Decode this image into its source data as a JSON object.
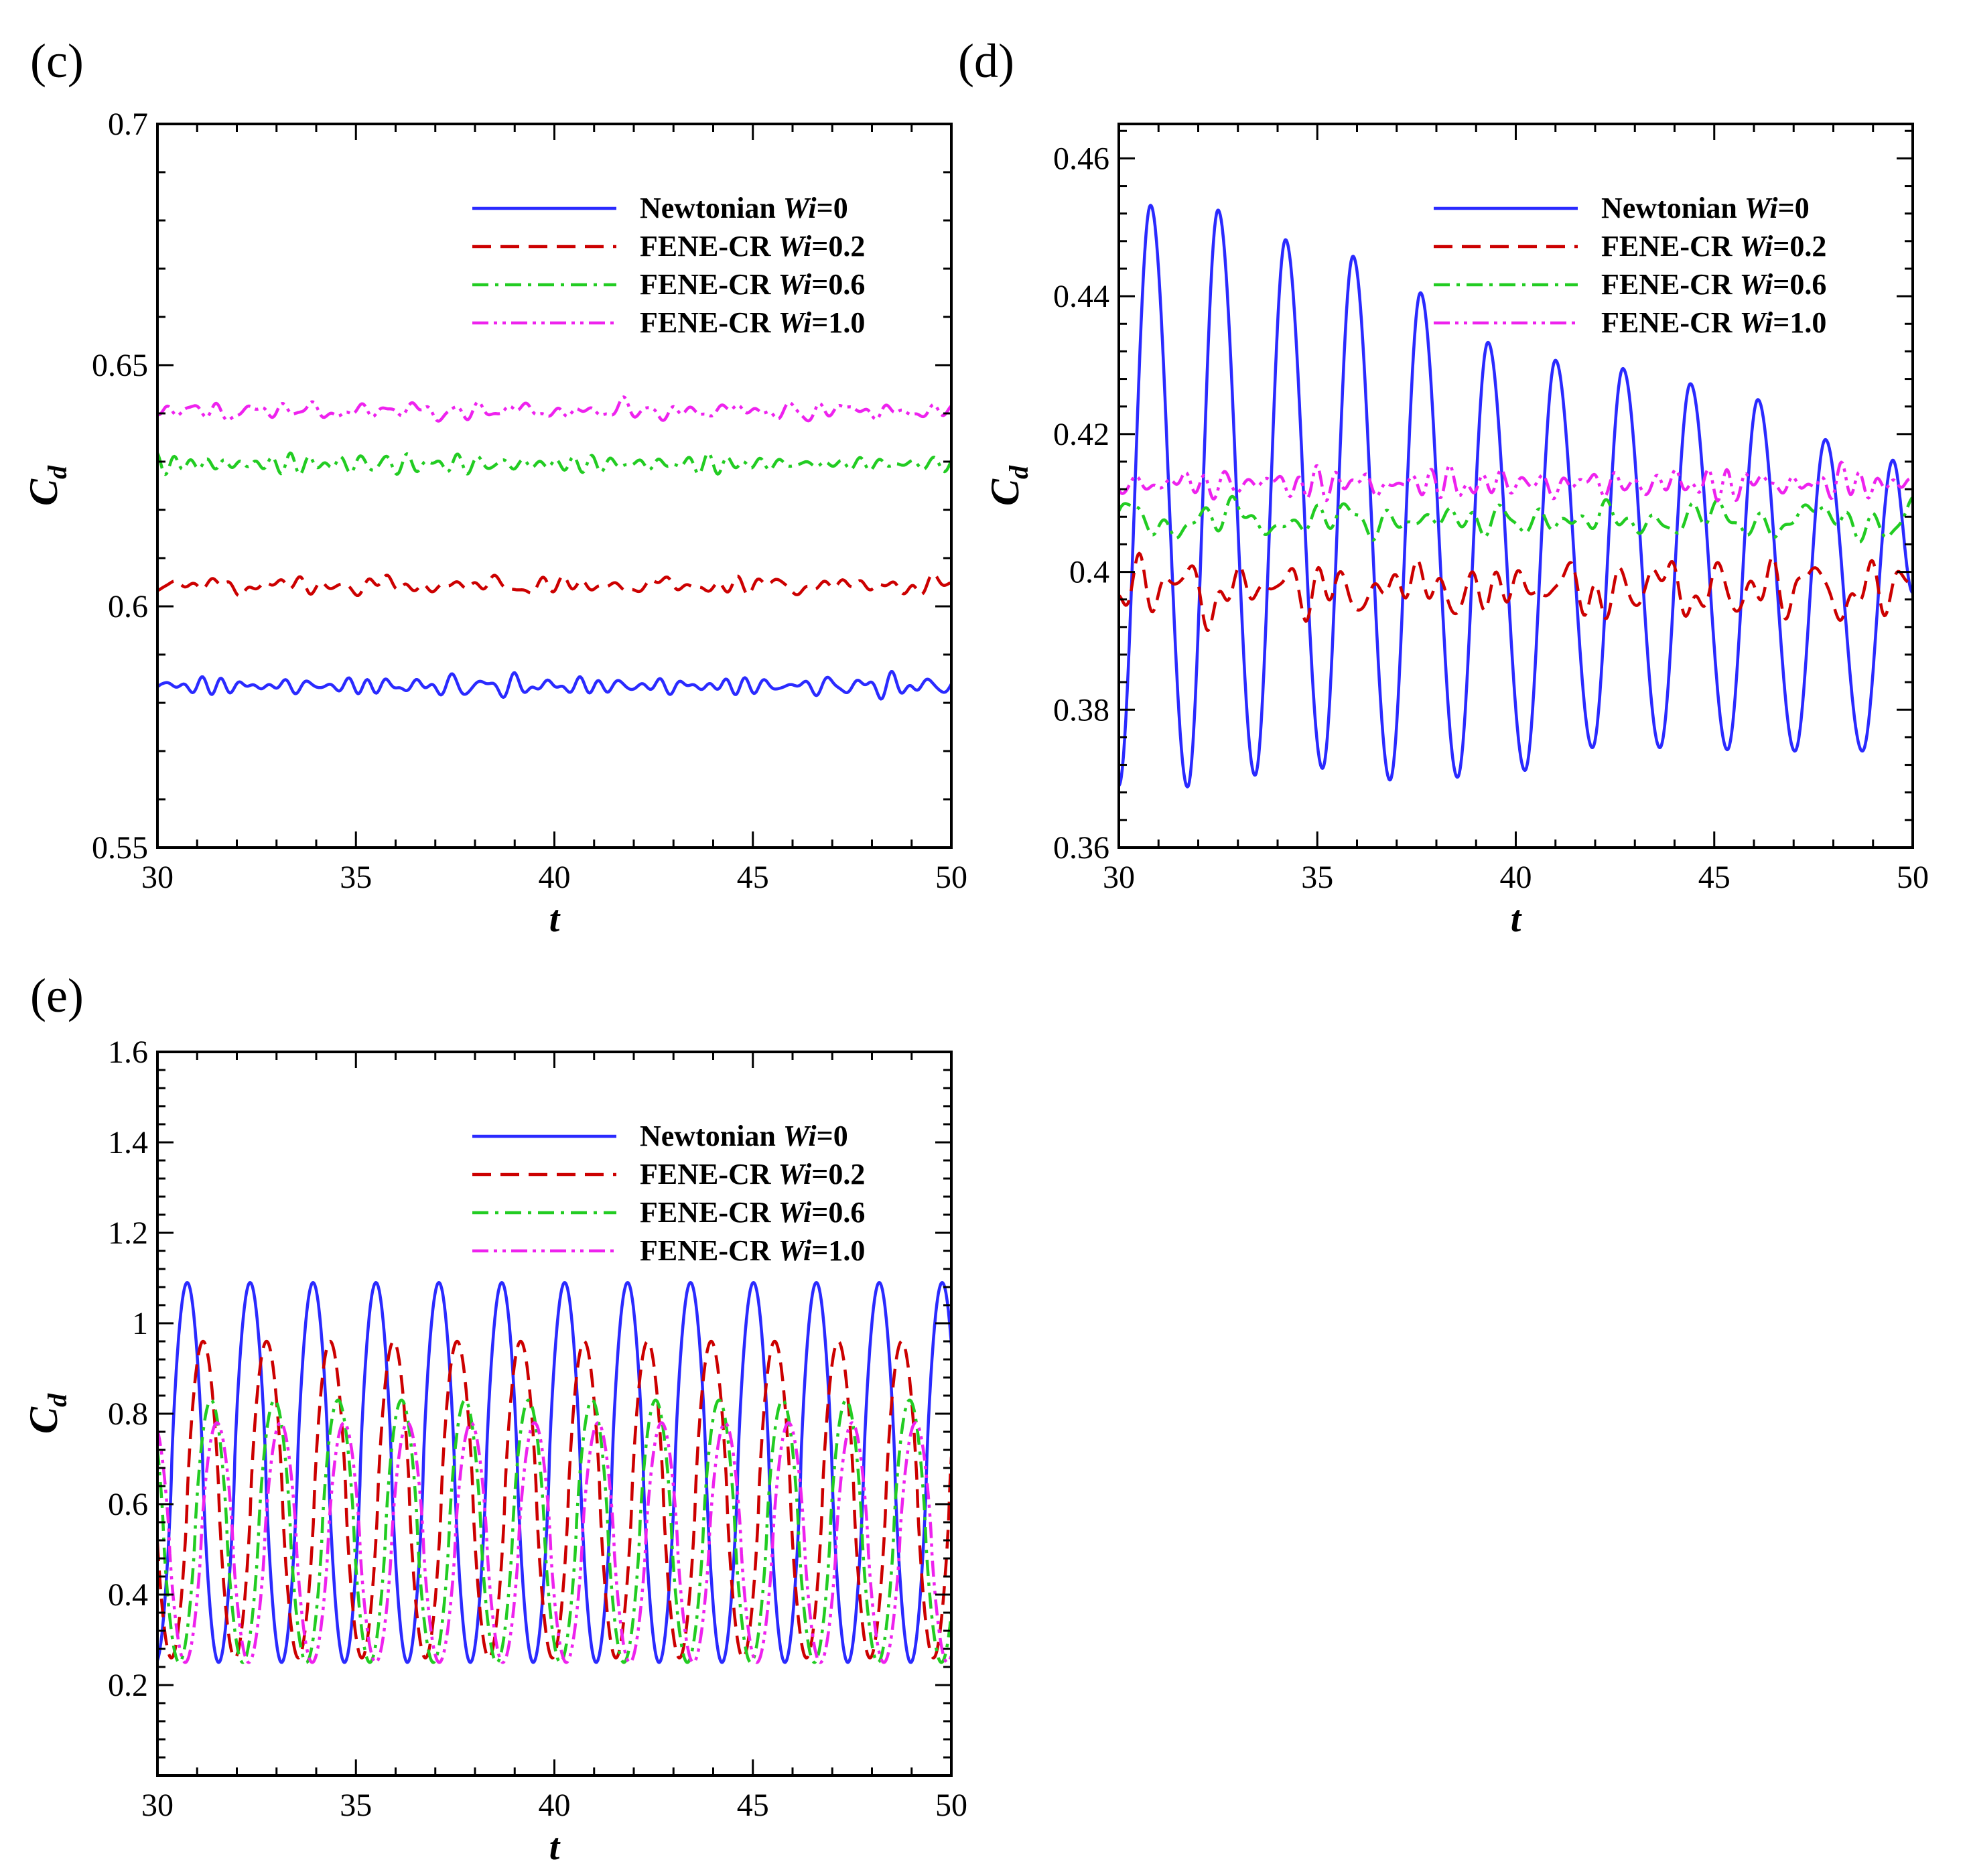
{
  "figure": {
    "panels": [
      "c",
      "d",
      "e"
    ]
  },
  "chart_data": [
    {
      "panel": "c",
      "panel_label": "(c)",
      "type": "line",
      "xlabel": "t",
      "ylabel_main": "C",
      "ylabel_sub": "d",
      "xlim": [
        30,
        50
      ],
      "ylim": [
        0.55,
        0.7
      ],
      "xticks": [
        30,
        35,
        40,
        45,
        50
      ],
      "xtick_labels": [
        "30",
        "35",
        "40",
        "45",
        "50"
      ],
      "yticks": [
        0.55,
        0.6,
        0.65,
        0.7
      ],
      "ytick_labels": [
        "0.55",
        "0.6",
        "0.65",
        "0.7"
      ],
      "legend_position": "top-right",
      "series": [
        {
          "name": "Newtonian",
          "wi_label": "Wi",
          "wi_value": "=0",
          "color": "#2a2aff",
          "dash": "solid",
          "mode": "noisy",
          "mean": 0.5835,
          "amp": 0.0015
        },
        {
          "name": "FENE-CR",
          "wi_label": "Wi",
          "wi_value": "=0.2",
          "color": "#cc0000",
          "dash": "dash",
          "mode": "noisy",
          "mean": 0.6043,
          "amp": 0.0015
        },
        {
          "name": "FENE-CR",
          "wi_label": "Wi",
          "wi_value": "=0.6",
          "color": "#22cc22",
          "dash": "dashdot",
          "mode": "noisy",
          "mean": 0.6295,
          "amp": 0.0015
        },
        {
          "name": "FENE-CR",
          "wi_label": "Wi",
          "wi_value": "=1.0",
          "color": "#ee22ee",
          "dash": "dashdotdot",
          "mode": "noisy",
          "mean": 0.6405,
          "amp": 0.0015
        }
      ]
    },
    {
      "panel": "d",
      "panel_label": "(d)",
      "type": "line",
      "xlabel": "t",
      "ylabel_main": "C",
      "ylabel_sub": "d",
      "xlim": [
        30,
        50
      ],
      "ylim": [
        0.36,
        0.465
      ],
      "xticks": [
        30,
        35,
        40,
        45,
        50
      ],
      "xtick_labels": [
        "30",
        "35",
        "40",
        "45",
        "50"
      ],
      "yticks": [
        0.36,
        0.38,
        0.4,
        0.42,
        0.44,
        0.46
      ],
      "ytick_labels": [
        "0.36",
        "0.38",
        "0.4",
        "0.42",
        "0.44",
        "0.46"
      ],
      "legend_position": "top-right",
      "series": [
        {
          "name": "Newtonian",
          "wi_label": "Wi",
          "wi_value": "=0",
          "color": "#2a2aff",
          "dash": "solid",
          "mode": "peaks",
          "period": 1.71,
          "phase": 30.8,
          "troughs": [
            0.3688,
            0.3705,
            0.3715,
            0.3698,
            0.3702,
            0.3712,
            0.3745,
            0.3745,
            0.3742,
            0.374
          ],
          "peaks": [
            {
              "t": 30.8,
              "v": 0.4532
            },
            {
              "t": 32.5,
              "v": 0.4525
            },
            {
              "t": 34.2,
              "v": 0.4482
            },
            {
              "t": 35.9,
              "v": 0.4458
            },
            {
              "t": 37.6,
              "v": 0.4405
            },
            {
              "t": 39.3,
              "v": 0.4333
            },
            {
              "t": 41.0,
              "v": 0.4307
            },
            {
              "t": 42.7,
              "v": 0.4295
            },
            {
              "t": 44.4,
              "v": 0.4273
            },
            {
              "t": 46.1,
              "v": 0.425
            },
            {
              "t": 47.8,
              "v": 0.4192
            },
            {
              "t": 49.5,
              "v": 0.4162
            }
          ]
        },
        {
          "name": "FENE-CR",
          "wi_label": "Wi",
          "wi_value": "=0.2",
          "color": "#cc0000",
          "dash": "dash",
          "mode": "noisy",
          "mean": 0.3975,
          "amp": 0.0035
        },
        {
          "name": "FENE-CR",
          "wi_label": "Wi",
          "wi_value": "=0.6",
          "color": "#22cc22",
          "dash": "dashdot",
          "mode": "noisy",
          "mean": 0.4075,
          "amp": 0.0022
        },
        {
          "name": "FENE-CR",
          "wi_label": "Wi",
          "wi_value": "=1.0",
          "color": "#ee22ee",
          "dash": "dashdotdot",
          "mode": "noisy",
          "mean": 0.4128,
          "amp": 0.0017
        }
      ]
    },
    {
      "panel": "e",
      "panel_label": "(e)",
      "type": "line",
      "xlabel": "t",
      "ylabel_main": "C",
      "ylabel_sub": "d",
      "xlim": [
        30,
        50
      ],
      "ylim": [
        0.0,
        1.6
      ],
      "xticks": [
        30,
        35,
        40,
        45,
        50
      ],
      "xtick_labels": [
        "30",
        "35",
        "40",
        "45",
        "50"
      ],
      "yticks": [
        0.2,
        0.4,
        0.6,
        0.8,
        1.0,
        1.2,
        1.4,
        1.6
      ],
      "ytick_labels": [
        "0.2",
        "0.4",
        "0.6",
        "0.8",
        "1",
        "1.2",
        "1.4",
        "1.6"
      ],
      "legend_position": "top-right",
      "series": [
        {
          "name": "Newtonian",
          "wi_label": "Wi",
          "wi_value": "=0",
          "color": "#2a2aff",
          "dash": "solid",
          "mode": "oscillation",
          "min": 0.25,
          "max": 1.09,
          "period": 1.585,
          "first_peak": 30.75
        },
        {
          "name": "FENE-CR",
          "wi_label": "Wi",
          "wi_value": "=0.2",
          "color": "#cc0000",
          "dash": "dash",
          "mode": "oscillation",
          "min": 0.26,
          "max": 0.96,
          "period": 1.6,
          "first_peak": 31.15
        },
        {
          "name": "FENE-CR",
          "wi_label": "Wi",
          "wi_value": "=0.6",
          "color": "#22cc22",
          "dash": "dashdot",
          "mode": "oscillation",
          "min": 0.25,
          "max": 0.83,
          "period": 1.6,
          "first_peak": 31.35
        },
        {
          "name": "FENE-CR",
          "wi_label": "Wi",
          "wi_value": "=1.0",
          "color": "#ee22ee",
          "dash": "dashdotdot",
          "mode": "oscillation",
          "min": 0.25,
          "max": 0.78,
          "period": 1.6,
          "first_peak": 31.5
        }
      ]
    }
  ]
}
